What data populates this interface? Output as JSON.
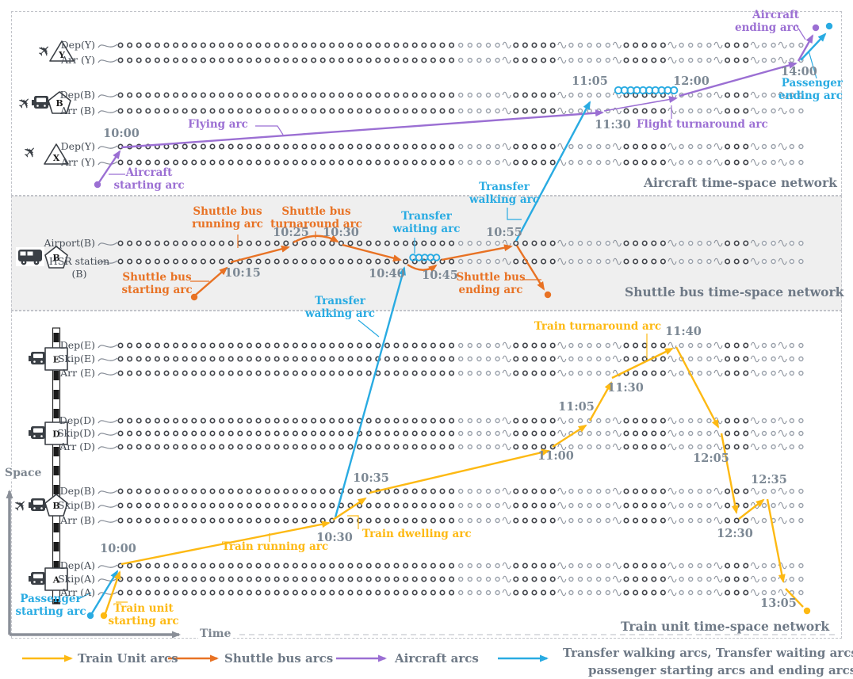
{
  "colors": {
    "train_arc": "#FDB913",
    "shuttle_arc": "#E87224",
    "aircraft_arc": "#9B6FD3",
    "transfer_arc": "#29ABE2",
    "time_label": "#7C8894",
    "row_label": "#454C55",
    "title": "#6E7986",
    "band_bg": "#EFEFEF",
    "axis_gray": "#8A8F98",
    "dot_dark": "#43464C",
    "dot_light": "#9AA1AB"
  },
  "axes": {
    "space_label": "Space",
    "time_label": "Time"
  },
  "networks": {
    "aircraft": {
      "title": "Aircraft time-space network",
      "blocks": [
        {
          "id": "airport-y",
          "icons": [
            "airplane-icon"
          ],
          "marker": {
            "shape": "triangle",
            "letter": "Y"
          },
          "rows": [
            {
              "id": "dep_y_top",
              "label": "Dep(Y)"
            },
            {
              "id": "arr_y_top",
              "label": "Arr (Y)"
            }
          ]
        },
        {
          "id": "airport-b",
          "icons": [
            "airplane-icon",
            "train-front-icon"
          ],
          "marker": {
            "shape": "pentagon",
            "letter": "B"
          },
          "rows": [
            {
              "id": "dep_b_air",
              "label": "Dep(B)"
            },
            {
              "id": "arr_b_air",
              "label": "Arr (B)"
            }
          ]
        },
        {
          "id": "airport-x",
          "icons": [
            "airplane-icon"
          ],
          "marker": {
            "shape": "triangle",
            "letter": "X"
          },
          "rows": [
            {
              "id": "dep_y_bot",
              "label": "Dep(Y)"
            },
            {
              "id": "arr_y_bot",
              "label": "Arr (Y)"
            }
          ]
        }
      ],
      "time_labels": [
        {
          "id": "air_1000",
          "text": "10:00"
        },
        {
          "id": "air_1105",
          "text": "11:05"
        },
        {
          "id": "air_1200",
          "text": "12:00"
        },
        {
          "id": "air_1130",
          "text": "11:30"
        },
        {
          "id": "air_1400",
          "text": "14:00"
        }
      ],
      "arc_labels": [
        {
          "id": "al_flying",
          "lines": [
            "Flying arc"
          ],
          "color": "aircraft_arc"
        },
        {
          "id": "al_flight_turn",
          "lines": [
            "Flight turnaround arc"
          ],
          "color": "aircraft_arc"
        },
        {
          "id": "al_air_start",
          "lines": [
            "Aircraft",
            "starting arc"
          ],
          "color": "aircraft_arc"
        },
        {
          "id": "al_air_end",
          "lines": [
            "Aircraft",
            "ending arc"
          ],
          "color": "aircraft_arc"
        },
        {
          "id": "al_pass_end",
          "lines": [
            "Passenger",
            "ending arc"
          ],
          "color": "transfer_arc"
        },
        {
          "id": "al_tw_upper",
          "lines": [
            "Transfer",
            "walking arc"
          ],
          "color": "transfer_arc"
        }
      ]
    },
    "shuttle": {
      "title": "Shuttle bus time-space network",
      "icons": [
        "bus-icon"
      ],
      "marker": {
        "shape": "pentagon",
        "letter": "B"
      },
      "rows": [
        {
          "id": "airport_b",
          "label": "Airport(B)"
        },
        {
          "id": "hsr_b",
          "label": "HSR station (B)"
        }
      ],
      "time_labels": [
        {
          "id": "sh_1015",
          "text": "10:15"
        },
        {
          "id": "sh_1025",
          "text": "10:25"
        },
        {
          "id": "sh_1030",
          "text": "10:30"
        },
        {
          "id": "sh_1040",
          "text": "10:40"
        },
        {
          "id": "sh_1045",
          "text": "10:45"
        },
        {
          "id": "sh_1055",
          "text": "10:55"
        }
      ],
      "arc_labels": [
        {
          "id": "al_sb_run",
          "lines": [
            "Shuttle bus",
            "running arc"
          ],
          "color": "shuttle_arc"
        },
        {
          "id": "al_sb_turn",
          "lines": [
            "Shuttle bus",
            "turnaround arc"
          ],
          "color": "shuttle_arc"
        },
        {
          "id": "al_sb_start",
          "lines": [
            "Shuttle bus",
            "starting arc"
          ],
          "color": "shuttle_arc"
        },
        {
          "id": "al_sb_end",
          "lines": [
            "Shuttle bus",
            "ending arc"
          ],
          "color": "shuttle_arc"
        },
        {
          "id": "al_twait",
          "lines": [
            "Transfer",
            "waiting arc"
          ],
          "color": "transfer_arc"
        }
      ]
    },
    "train": {
      "title": "Train unit time-space network",
      "stations": [
        {
          "id": "E",
          "icons": [
            "train-front-icon"
          ],
          "marker": {
            "shape": "square",
            "letter": "E"
          },
          "rows": [
            {
              "id": "dep_e",
              "label": "Dep(E)"
            },
            {
              "id": "skip_e",
              "label": "Skip(E)"
            },
            {
              "id": "arr_e",
              "label": "Arr (E)"
            }
          ]
        },
        {
          "id": "D",
          "icons": [
            "train-front-icon"
          ],
          "marker": {
            "shape": "square",
            "letter": "D"
          },
          "rows": [
            {
              "id": "dep_d",
              "label": "Dep(D)"
            },
            {
              "id": "skip_d",
              "label": "Skip(D)"
            },
            {
              "id": "arr_d",
              "label": "Arr (D)"
            }
          ]
        },
        {
          "id": "B",
          "icons": [
            "airplane-icon",
            "train-front-icon"
          ],
          "marker": {
            "shape": "pentagon",
            "letter": "B"
          },
          "rows": [
            {
              "id": "dep_b_tr",
              "label": "Dep(B)"
            },
            {
              "id": "skip_b_tr",
              "label": "Skip(B)"
            },
            {
              "id": "arr_b_tr",
              "label": "Arr (B)"
            }
          ]
        },
        {
          "id": "A",
          "icons": [
            "train-front-icon"
          ],
          "marker": {
            "shape": "square",
            "letter": "A"
          },
          "rows": [
            {
              "id": "dep_a",
              "label": "Dep(A)"
            },
            {
              "id": "skip_a",
              "label": "Skip(A)"
            },
            {
              "id": "arr_a",
              "label": "Arr (A)"
            }
          ]
        }
      ],
      "time_labels": [
        {
          "id": "tr_1000",
          "text": "10:00"
        },
        {
          "id": "tr_1030",
          "text": "10:30"
        },
        {
          "id": "tr_1035",
          "text": "10:35"
        },
        {
          "id": "tr_1100",
          "text": "11:00"
        },
        {
          "id": "tr_1105",
          "text": "11:05"
        },
        {
          "id": "tr_1130",
          "text": "11:30"
        },
        {
          "id": "tr_1140",
          "text": "11:40"
        },
        {
          "id": "tr_1205",
          "text": "12:05"
        },
        {
          "id": "tr_1230",
          "text": "12:30"
        },
        {
          "id": "tr_1235",
          "text": "12:35"
        },
        {
          "id": "tr_1305",
          "text": "13:05"
        }
      ],
      "arc_labels": [
        {
          "id": "al_tr_run",
          "lines": [
            "Train running arc"
          ],
          "color": "train_arc"
        },
        {
          "id": "al_tr_dwell",
          "lines": [
            "Train dwelling arc"
          ],
          "color": "train_arc"
        },
        {
          "id": "al_tr_turn",
          "lines": [
            "Train turnaround arc"
          ],
          "color": "train_arc"
        },
        {
          "id": "al_tu_start",
          "lines": [
            "Train unit",
            "starting arc"
          ],
          "color": "train_arc"
        },
        {
          "id": "al_pass_start",
          "lines": [
            "Passenger",
            "starting arc"
          ],
          "color": "transfer_arc"
        },
        {
          "id": "al_tw_lower",
          "lines": [
            "Transfer",
            "walking arc"
          ],
          "color": "transfer_arc"
        }
      ]
    }
  },
  "legend": {
    "items": [
      {
        "id": "legend-train",
        "label": "Train Unit arcs",
        "color": "train_arc"
      },
      {
        "id": "legend-shuttle",
        "label": "Shuttle bus arcs",
        "color": "shuttle_arc"
      },
      {
        "id": "legend-aircraft",
        "label": "Aircraft arcs",
        "color": "aircraft_arc"
      },
      {
        "id": "legend-transfer",
        "label": "Transfer walking arcs, Transfer waiting arcs，",
        "label_line2": "passenger starting arcs and ending arcs",
        "color": "transfer_arc"
      }
    ]
  }
}
